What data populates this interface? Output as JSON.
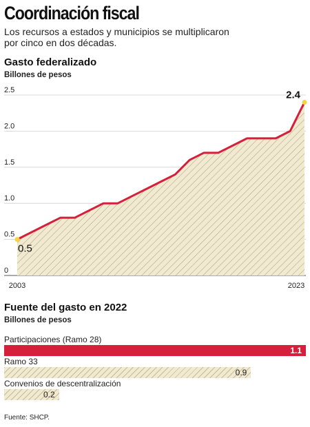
{
  "header": {
    "title": "Coordinación fiscal",
    "subtitle": "Los recursos a estados y municipios se multiplicaron por cinco en dos décadas."
  },
  "colors": {
    "accent": "#d61f3a",
    "point": "#f5d342",
    "hatch_fill": "#f1ead0"
  },
  "chart_data": [
    {
      "type": "area",
      "title": "Gasto federalizado",
      "ylabel": "Billones de pesos",
      "ylim": [
        0,
        2.5
      ],
      "yticks": [
        "0",
        "0.5",
        "1.0",
        "1.5",
        "2.0",
        "2.5"
      ],
      "xtick_labels": [
        "2003",
        "2023"
      ],
      "x": [
        2003,
        2004,
        2005,
        2006,
        2007,
        2008,
        2009,
        2010,
        2011,
        2012,
        2013,
        2014,
        2015,
        2016,
        2017,
        2018,
        2019,
        2020,
        2021,
        2022,
        2023
      ],
      "values": [
        0.5,
        0.6,
        0.7,
        0.8,
        0.8,
        0.9,
        1.0,
        1.0,
        1.1,
        1.2,
        1.3,
        1.4,
        1.6,
        1.7,
        1.7,
        1.8,
        1.9,
        1.9,
        1.9,
        2.0,
        2.4
      ],
      "start_label": "0.5",
      "end_label": "2.4",
      "grid": true
    },
    {
      "type": "bar",
      "title": "Fuente del gasto en 2022",
      "ylabel": "Billones de pesos",
      "xlim": [
        0,
        1.1
      ],
      "categories": [
        "Participaciones (Ramo 28)",
        "Ramo 33",
        "Convenios de descentralización"
      ],
      "values": [
        1.1,
        0.9,
        0.2
      ],
      "value_labels": [
        "1.1",
        "0.9",
        "0.2"
      ]
    }
  ],
  "footer": {
    "source": "Fuente: SHCP."
  }
}
